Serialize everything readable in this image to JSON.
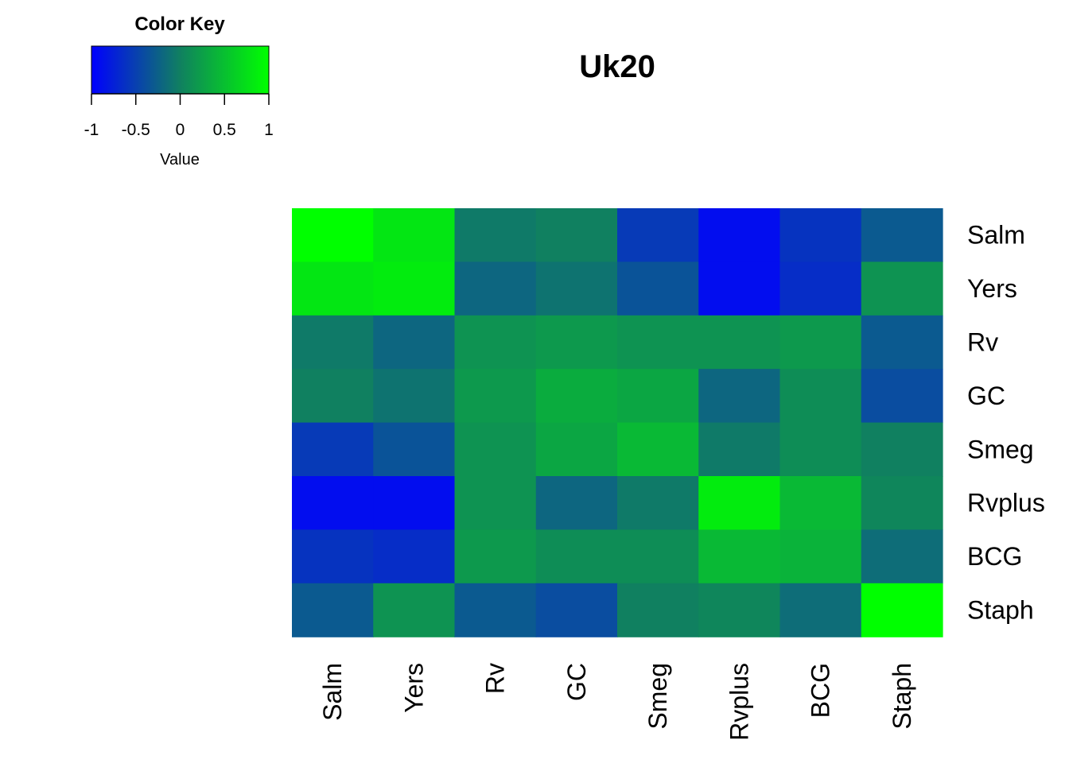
{
  "chart_data": {
    "type": "heatmap",
    "title": "Uk20",
    "rows": [
      "Salm",
      "Yers",
      "Rv",
      "GC",
      "Smeg",
      "Rvplus",
      "BCG",
      "Staph"
    ],
    "columns": [
      "Salm",
      "Yers",
      "Rv",
      "GC",
      "Smeg",
      "Rvplus",
      "BCG",
      "Staph"
    ],
    "values": [
      [
        1.0,
        0.8,
        -0.05,
        0.0,
        -0.55,
        -0.9,
        -0.6,
        -0.3
      ],
      [
        0.8,
        0.85,
        -0.2,
        -0.1,
        -0.35,
        -0.9,
        -0.65,
        0.15
      ],
      [
        -0.05,
        -0.2,
        0.15,
        0.2,
        0.15,
        0.15,
        0.2,
        -0.3
      ],
      [
        0.0,
        -0.1,
        0.2,
        0.35,
        0.3,
        -0.2,
        0.1,
        -0.4
      ],
      [
        -0.55,
        -0.35,
        0.15,
        0.3,
        0.45,
        -0.05,
        0.1,
        0.0
      ],
      [
        -0.9,
        -0.9,
        0.15,
        -0.2,
        -0.05,
        0.85,
        0.45,
        0.05
      ],
      [
        -0.6,
        -0.65,
        0.2,
        0.1,
        0.1,
        0.45,
        0.4,
        -0.15
      ],
      [
        -0.3,
        0.15,
        -0.3,
        -0.4,
        0.0,
        0.05,
        -0.15,
        1.0
      ]
    ],
    "color_scale": {
      "min": -1,
      "max": 1,
      "colors": [
        "#0000ff",
        "#108060",
        "#00ff00"
      ]
    },
    "color_key": {
      "title": "Color Key",
      "xlabel": "Value",
      "ticks": [
        -1,
        -0.5,
        0,
        0.5,
        1
      ],
      "tick_labels": [
        "-1",
        "-0.5",
        "0",
        "0.5",
        "1"
      ]
    }
  }
}
